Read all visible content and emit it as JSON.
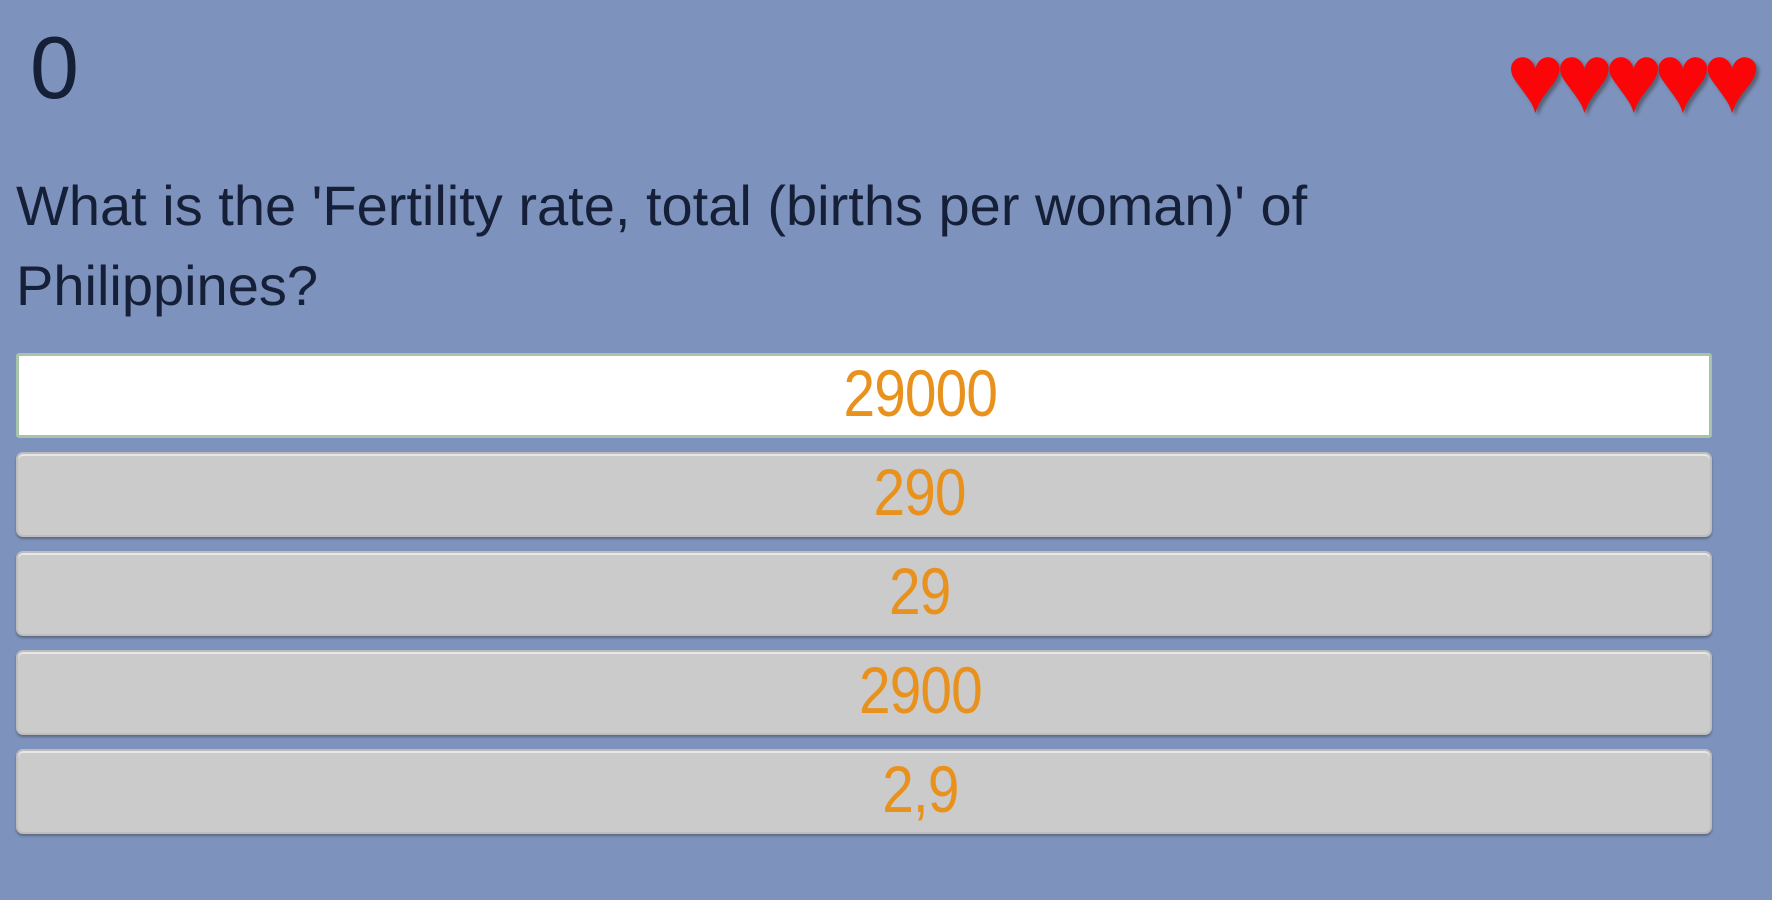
{
  "app": {
    "background_color": "#7d92bc",
    "text_color": "#151f38"
  },
  "header": {
    "score": "0",
    "lives": {
      "count": 5,
      "heart_glyph": "♥",
      "heart_color": "#fb0508"
    }
  },
  "quiz": {
    "question": "What is the 'Fertility rate, total (births per woman)' of Philippines?",
    "answer_text_color": "#e8911d",
    "highlight_border_color": "#a7c4ab",
    "answers": [
      {
        "label": "29000",
        "state": "highlighted"
      },
      {
        "label": "290",
        "state": "default"
      },
      {
        "label": "29",
        "state": "default"
      },
      {
        "label": "2900",
        "state": "default"
      },
      {
        "label": "2,9",
        "state": "default"
      }
    ]
  }
}
